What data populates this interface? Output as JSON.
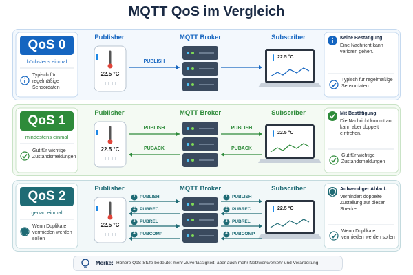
{
  "title": "MQTT QoS im Vergleich",
  "rows": [
    {
      "level": "QoS 0",
      "subtitle": "höchstens einmal",
      "use_case": "Typisch für regelmäßige Sensordaten",
      "publisher": "Publisher",
      "broker": "MQTT Broker",
      "subscriber": "Subscriber",
      "reading": "22.5 °C",
      "left_messages": [
        {
          "label": "PUBLISH"
        }
      ],
      "right_messages": [],
      "info_heading": "Keine Bestätigung.",
      "info_text": "Eine Nachricht kann verloren gehen."
    },
    {
      "level": "QoS 1",
      "subtitle": "mindestens einmal",
      "use_case": "Gut für wichtige Zustandsmeldungen",
      "publisher": "Publisher",
      "broker": "MQTT Broker",
      "subscriber": "Subscriber",
      "reading": "22.5 °C",
      "left_messages": [
        {
          "label": "PUBLISH"
        },
        {
          "label": "PUBACK"
        }
      ],
      "right_messages": [
        {
          "label": "PUBLISH"
        },
        {
          "label": "PUBACK"
        }
      ],
      "info_heading": "Mit Bestätigung.",
      "info_text": "Die Nachricht kommt an, kann aber doppelt eintreffen."
    },
    {
      "level": "QoS 2",
      "subtitle": "genau einmal",
      "use_case": "Wenn Duplikate vermieden werden sollen",
      "publisher": "Publisher",
      "broker": "MQTT Broker",
      "subscriber": "Subscriber",
      "reading": "22.5 °C",
      "left_messages": [
        {
          "step": 1,
          "label": "PUBLISH"
        },
        {
          "step": 2,
          "label": "PUBREC"
        },
        {
          "step": 3,
          "label": "PUBREL"
        },
        {
          "step": 4,
          "label": "PUBCOMP"
        }
      ],
      "right_messages": [
        {
          "step": 1,
          "label": "PUBLISH"
        },
        {
          "step": 2,
          "label": "PUBREC"
        },
        {
          "step": 3,
          "label": "PUBREL"
        },
        {
          "step": 4,
          "label": "PUBCOMP"
        }
      ],
      "info_heading": "Aufwendiger Ablauf.",
      "info_text": "Verhindert doppelte Zustellung auf dieser Strecke."
    }
  ],
  "footer": {
    "label": "Merke:",
    "text": "Höhere QoS-Stufe bedeutet mehr Zuverlässigkeit, aber auch mehr Netzwerkverkehr und Verarbeitung."
  }
}
